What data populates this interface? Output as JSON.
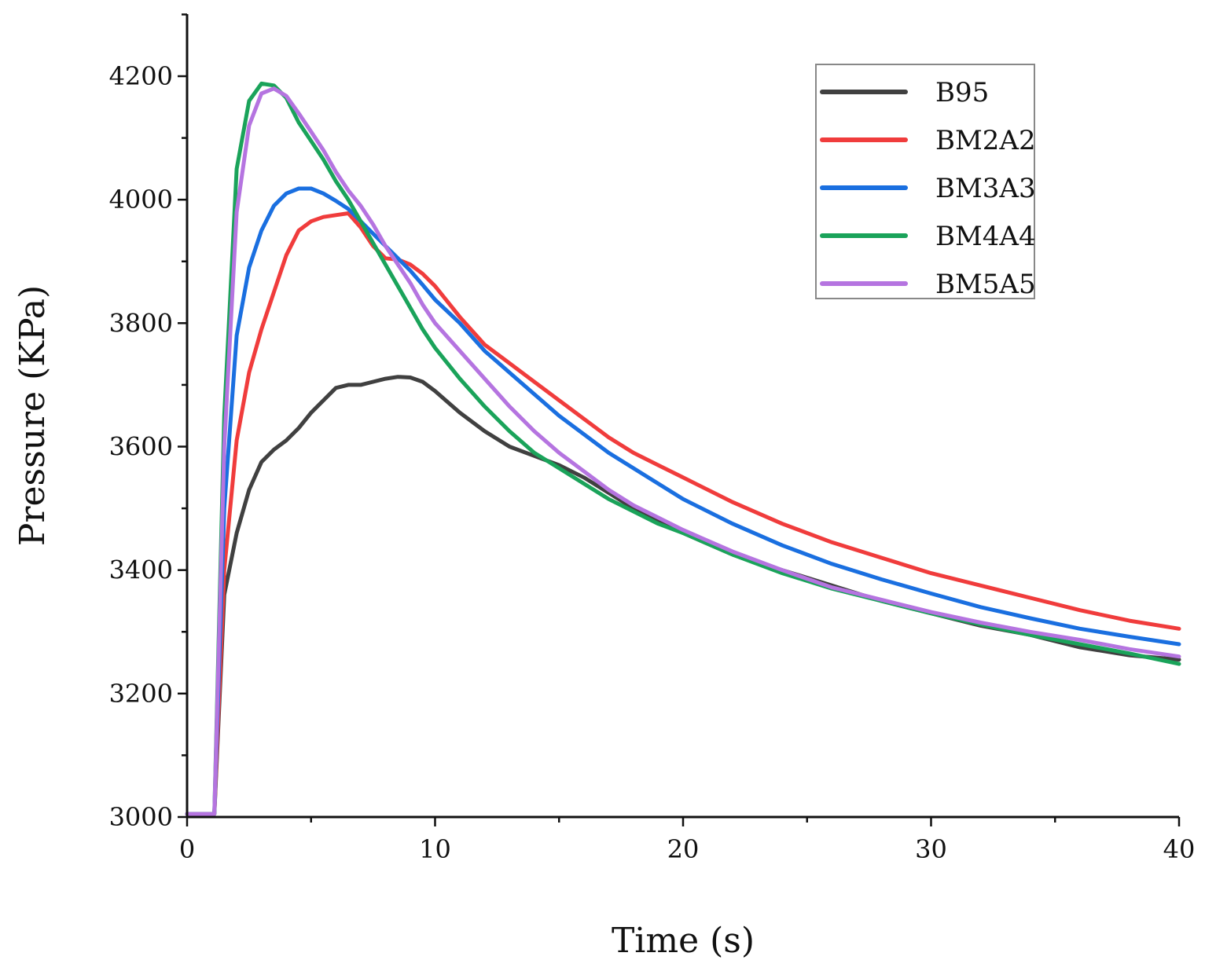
{
  "chart_data": {
    "type": "line",
    "title": "",
    "xlabel": "Time (s)",
    "ylabel": "Pressure (KPa)",
    "xlim": [
      0,
      40
    ],
    "ylim": [
      3000,
      4300
    ],
    "xticks": [
      0,
      10,
      20,
      30,
      40
    ],
    "yticks": [
      3000,
      3200,
      3400,
      3600,
      3800,
      4000,
      4200
    ],
    "grid": false,
    "legend_position": "top-right",
    "series": [
      {
        "name": "B95",
        "color": "#404040",
        "x": [
          0,
          0.9,
          1.0,
          1.1,
          1.5,
          2.0,
          2.5,
          3.0,
          3.5,
          4.0,
          4.5,
          5.0,
          5.5,
          6.0,
          6.5,
          7.0,
          7.5,
          8.0,
          8.5,
          9.0,
          9.5,
          10,
          11,
          12,
          13,
          14,
          15,
          16,
          17,
          18,
          19,
          20,
          22,
          24,
          26,
          28,
          30,
          32,
          34,
          36,
          38,
          40
        ],
        "y": [
          3005,
          3005,
          3005,
          3005,
          3360,
          3460,
          3530,
          3575,
          3595,
          3610,
          3630,
          3655,
          3675,
          3695,
          3700,
          3700,
          3705,
          3710,
          3713,
          3712,
          3705,
          3690,
          3655,
          3625,
          3600,
          3585,
          3570,
          3550,
          3525,
          3500,
          3480,
          3460,
          3425,
          3400,
          3375,
          3350,
          3330,
          3310,
          3295,
          3275,
          3262,
          3255
        ]
      },
      {
        "name": "BM2A2",
        "color": "#f03c3c",
        "x": [
          0,
          0.9,
          1.0,
          1.1,
          1.5,
          2.0,
          2.5,
          3.0,
          3.5,
          4.0,
          4.5,
          5.0,
          5.5,
          6.0,
          6.5,
          7.0,
          7.5,
          8.0,
          8.5,
          9.0,
          9.5,
          10,
          11,
          12,
          13,
          14,
          15,
          16,
          17,
          18,
          19,
          20,
          22,
          24,
          26,
          28,
          30,
          32,
          34,
          36,
          38,
          40
        ],
        "y": [
          3005,
          3005,
          3005,
          3005,
          3400,
          3610,
          3720,
          3790,
          3850,
          3910,
          3950,
          3965,
          3972,
          3975,
          3978,
          3955,
          3925,
          3905,
          3903,
          3895,
          3880,
          3860,
          3810,
          3765,
          3735,
          3705,
          3675,
          3645,
          3615,
          3590,
          3570,
          3550,
          3510,
          3475,
          3445,
          3420,
          3395,
          3375,
          3355,
          3335,
          3318,
          3305
        ]
      },
      {
        "name": "BM3A3",
        "color": "#1a6fe0",
        "x": [
          0,
          0.9,
          1.0,
          1.1,
          1.5,
          2.0,
          2.5,
          3.0,
          3.5,
          4.0,
          4.5,
          5.0,
          5.5,
          6.0,
          6.5,
          7.0,
          7.5,
          8.0,
          8.5,
          9.0,
          9.5,
          10,
          11,
          12,
          13,
          14,
          15,
          16,
          17,
          18,
          19,
          20,
          22,
          24,
          26,
          28,
          30,
          32,
          34,
          36,
          38,
          40
        ],
        "y": [
          3005,
          3005,
          3005,
          3005,
          3500,
          3780,
          3890,
          3950,
          3990,
          4010,
          4018,
          4018,
          4010,
          3998,
          3985,
          3965,
          3945,
          3925,
          3905,
          3885,
          3862,
          3838,
          3800,
          3755,
          3720,
          3685,
          3650,
          3620,
          3590,
          3565,
          3540,
          3515,
          3475,
          3440,
          3410,
          3385,
          3362,
          3340,
          3322,
          3305,
          3292,
          3280
        ]
      },
      {
        "name": "BM4A4",
        "color": "#1aa35a",
        "x": [
          0,
          0.9,
          1.0,
          1.1,
          1.5,
          2.0,
          2.5,
          3.0,
          3.5,
          4.0,
          4.5,
          5.0,
          5.5,
          6.0,
          6.5,
          7.0,
          7.5,
          8.0,
          8.5,
          9.0,
          9.5,
          10,
          11,
          12,
          13,
          14,
          15,
          16,
          17,
          18,
          19,
          20,
          22,
          24,
          26,
          28,
          30,
          32,
          34,
          36,
          38,
          40
        ],
        "y": [
          3005,
          3005,
          3005,
          3005,
          3650,
          4050,
          4160,
          4188,
          4185,
          4165,
          4125,
          4095,
          4065,
          4030,
          4000,
          3965,
          3930,
          3895,
          3860,
          3825,
          3790,
          3760,
          3710,
          3665,
          3625,
          3590,
          3565,
          3540,
          3515,
          3495,
          3475,
          3460,
          3425,
          3395,
          3370,
          3350,
          3330,
          3312,
          3295,
          3280,
          3265,
          3248
        ]
      },
      {
        "name": "BM5A5",
        "color": "#b574e0",
        "x": [
          0,
          0.9,
          1.0,
          1.1,
          1.5,
          2.0,
          2.5,
          3.0,
          3.5,
          4.0,
          4.5,
          5.0,
          5.5,
          6.0,
          6.5,
          7.0,
          7.5,
          8.0,
          8.5,
          9.0,
          9.5,
          10,
          11,
          12,
          13,
          14,
          15,
          16,
          17,
          18,
          19,
          20,
          22,
          24,
          26,
          28,
          30,
          32,
          34,
          36,
          38,
          40
        ],
        "y": [
          3005,
          3005,
          3005,
          3005,
          3600,
          3980,
          4120,
          4172,
          4180,
          4168,
          4140,
          4110,
          4080,
          4045,
          4015,
          3990,
          3960,
          3925,
          3895,
          3865,
          3830,
          3800,
          3755,
          3710,
          3665,
          3625,
          3590,
          3560,
          3530,
          3505,
          3485,
          3465,
          3430,
          3400,
          3372,
          3352,
          3332,
          3315,
          3300,
          3287,
          3272,
          3260
        ]
      }
    ]
  }
}
